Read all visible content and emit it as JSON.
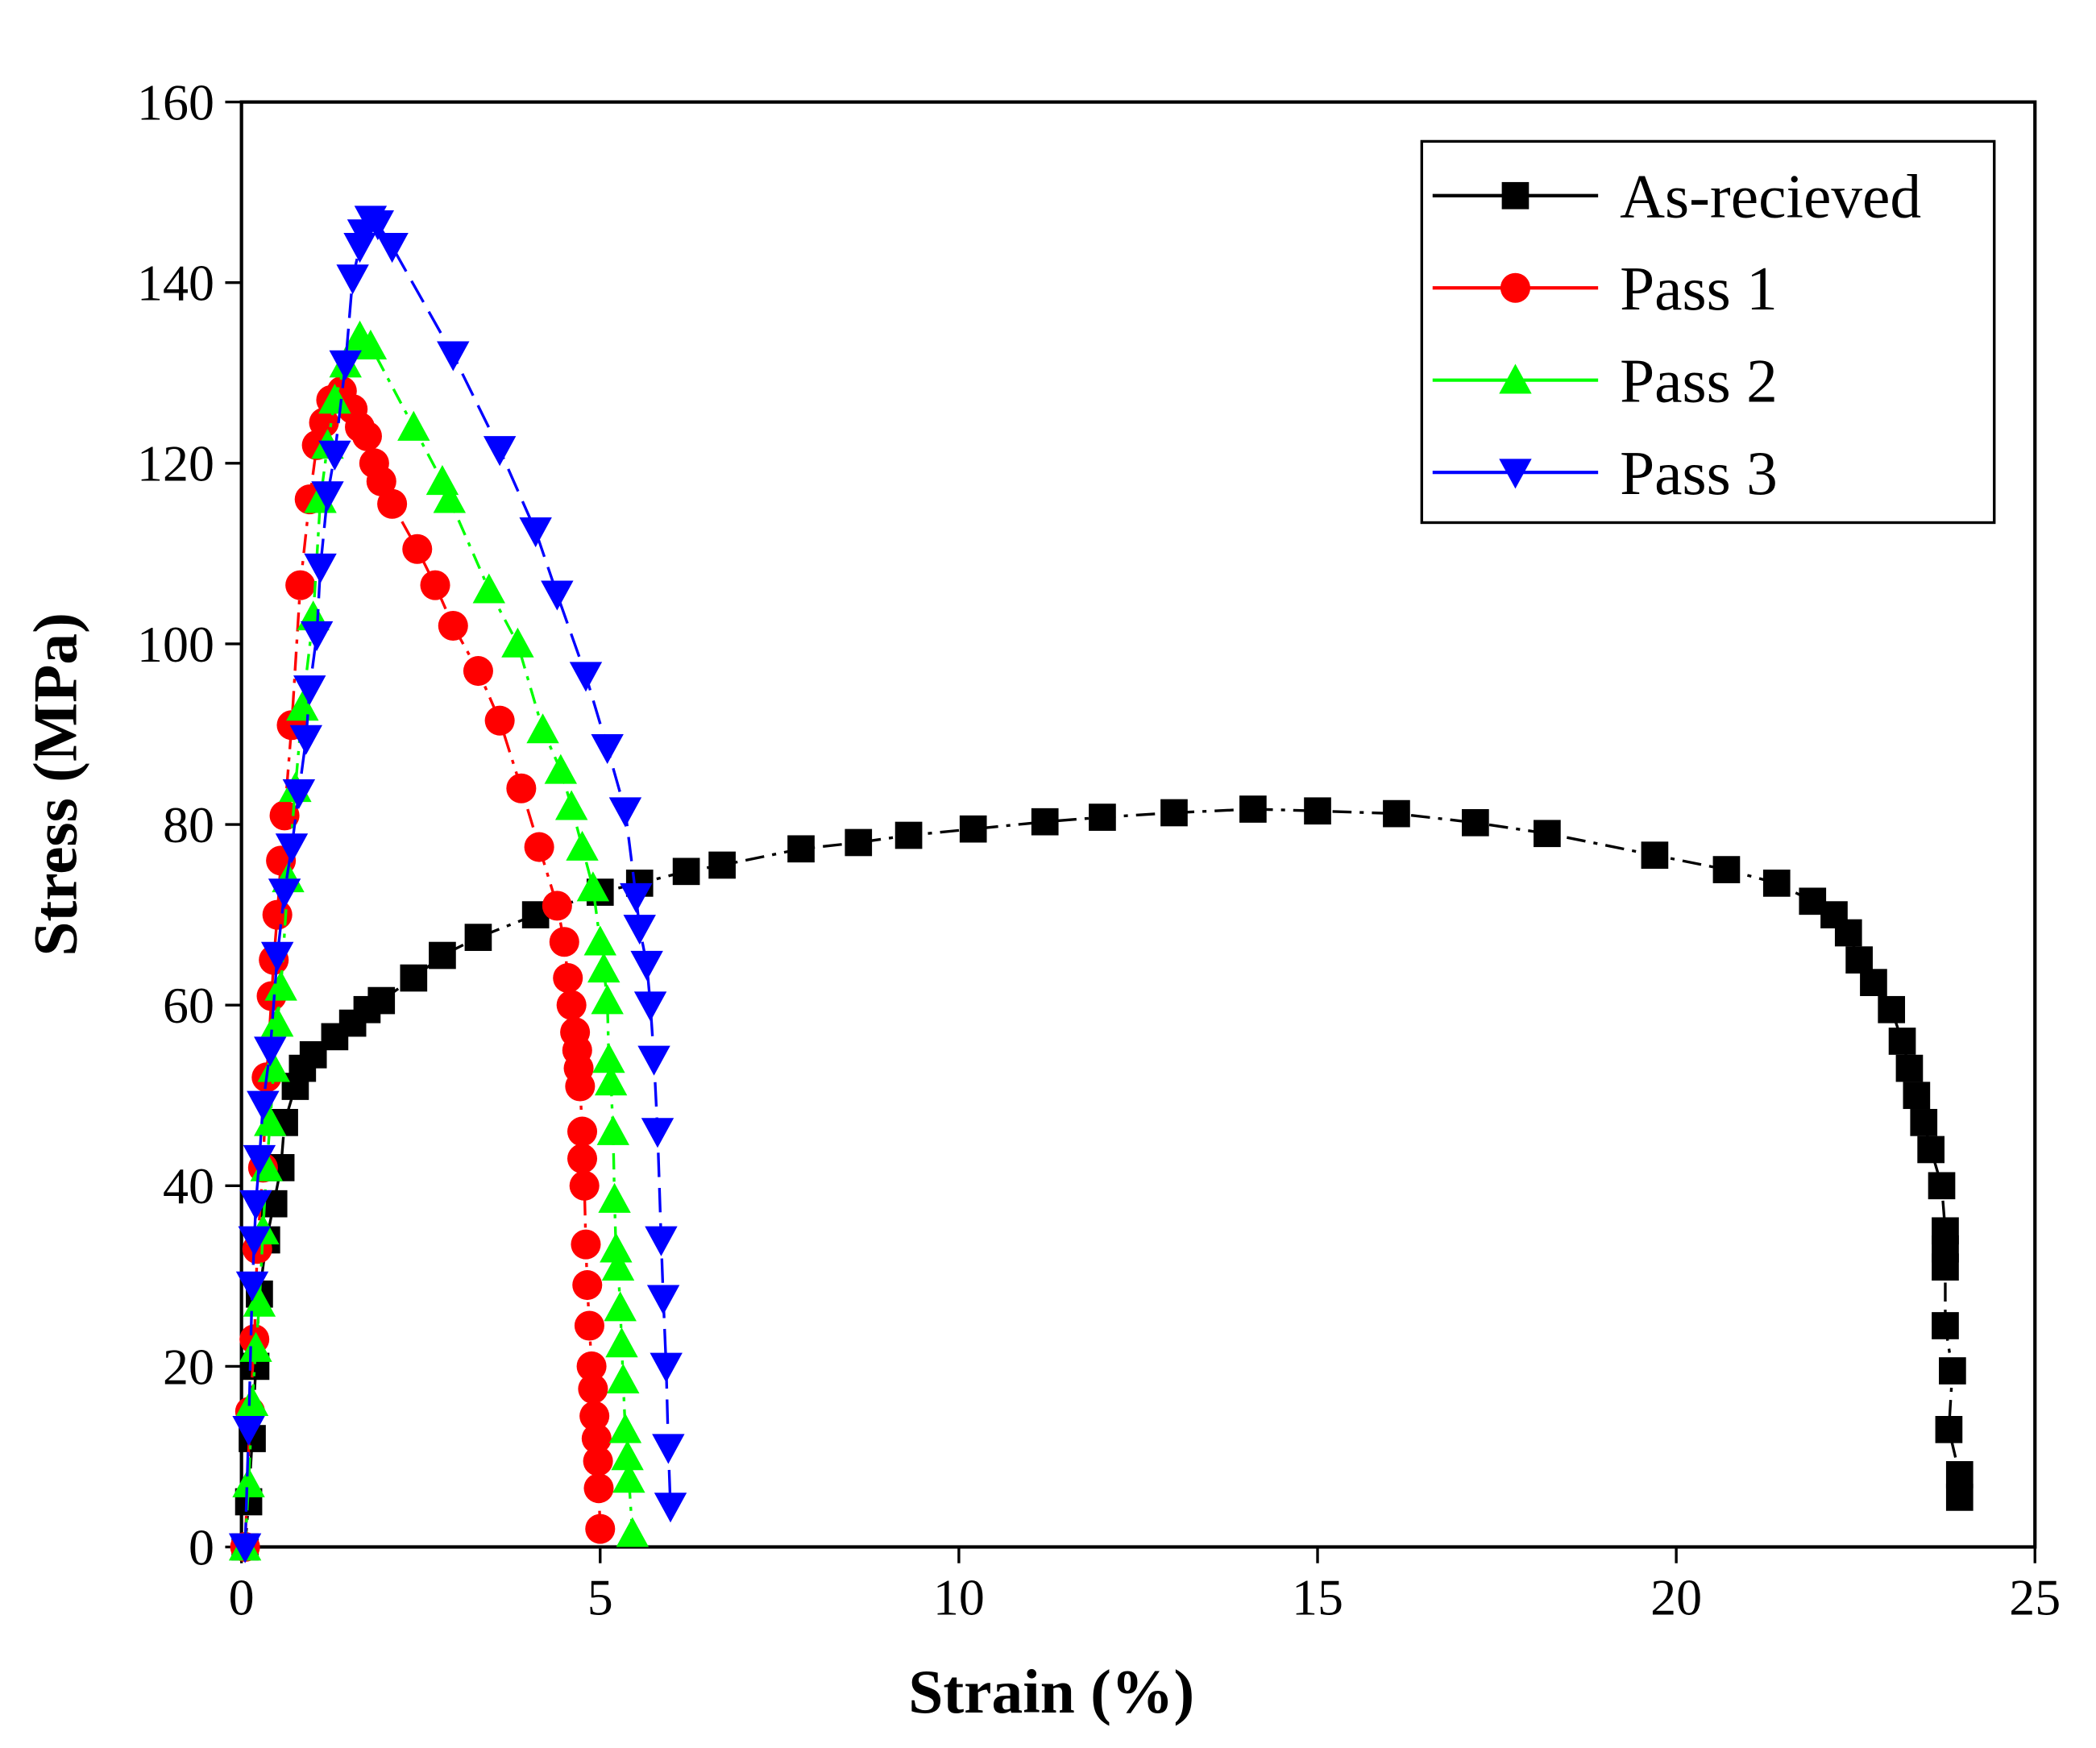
{
  "chart_data": {
    "type": "line",
    "xlabel": "Strain (%)",
    "ylabel": "Stress (MPa)",
    "xlim": [
      0,
      25
    ],
    "xticks": [
      0,
      5,
      10,
      15,
      20,
      25
    ],
    "ylim": [
      0,
      160
    ],
    "yticks": [
      0,
      20,
      40,
      60,
      80,
      100,
      120,
      140,
      160
    ],
    "legend": "upper right",
    "series": [
      {
        "name": "As-recieved",
        "color": "#000000",
        "marker": "square",
        "x": [
          0.05,
          0.1,
          0.15,
          0.2,
          0.25,
          0.35,
          0.45,
          0.55,
          0.6,
          0.75,
          0.85,
          1.0,
          1.3,
          1.55,
          1.75,
          1.95,
          2.4,
          2.8,
          3.3,
          4.1,
          5.0,
          5.55,
          6.2,
          6.7,
          7.8,
          8.6,
          9.3,
          10.2,
          11.2,
          12.0,
          13.0,
          14.1,
          15.0,
          16.1,
          17.2,
          18.2,
          19.7,
          20.7,
          21.4,
          21.9,
          22.2,
          22.4,
          22.55,
          22.75,
          23.0,
          23.15,
          23.25,
          23.35,
          23.45,
          23.55,
          23.7,
          23.75,
          23.75,
          23.75,
          23.75,
          23.85,
          23.8,
          23.95,
          23.95
        ],
        "values": [
          0,
          5,
          12,
          20,
          28,
          34,
          38,
          42,
          47,
          51,
          53,
          54.5,
          56.5,
          58,
          59.5,
          60.5,
          63,
          65.5,
          67.5,
          70,
          72.5,
          73.5,
          74.8,
          75.5,
          77.3,
          78,
          78.8,
          79.5,
          80.3,
          80.8,
          81.3,
          81.7,
          81.5,
          81.2,
          80.2,
          79,
          76.6,
          75,
          73.5,
          71.5,
          70,
          68,
          65,
          62.5,
          59.5,
          56,
          53,
          50,
          47,
          44,
          40,
          35,
          31,
          33,
          24.5,
          19.5,
          13,
          8,
          5.5
        ]
      },
      {
        "name": "Pass 1",
        "color": "#ff0000",
        "marker": "circle",
        "x": [
          0.05,
          0.12,
          0.18,
          0.22,
          0.3,
          0.35,
          0.42,
          0.45,
          0.5,
          0.55,
          0.6,
          0.7,
          0.82,
          0.95,
          1.05,
          1.15,
          1.25,
          1.4,
          1.55,
          1.65,
          1.75,
          1.85,
          1.95,
          2.1,
          2.45,
          2.7,
          2.95,
          3.3,
          3.6,
          3.9,
          4.15,
          4.4,
          4.5,
          4.55,
          4.6,
          4.65,
          4.68,
          4.7,
          4.72,
          4.75,
          4.75,
          4.78,
          4.8,
          4.82,
          4.85,
          4.88,
          4.9,
          4.92,
          4.95,
          4.97,
          4.98,
          5.0
        ],
        "values": [
          0,
          15,
          23,
          33,
          42,
          52,
          61,
          65,
          70,
          76,
          81,
          91,
          106.5,
          116,
          122,
          124.5,
          127,
          128,
          126,
          124,
          123,
          120,
          118,
          115.5,
          110.5,
          106.5,
          102,
          97,
          91.5,
          84,
          77.5,
          71,
          67,
          63,
          60,
          57,
          55,
          53,
          51,
          46,
          43,
          40,
          33.5,
          29,
          24.5,
          20,
          17.5,
          14.5,
          12,
          9.5,
          6.5,
          2
        ]
      },
      {
        "name": "Pass 2",
        "color": "#00ff00",
        "marker": "triangle-up",
        "x": [
          0.05,
          0.1,
          0.15,
          0.2,
          0.25,
          0.3,
          0.35,
          0.4,
          0.45,
          0.5,
          0.55,
          0.65,
          0.75,
          0.85,
          1.0,
          1.1,
          1.2,
          1.3,
          1.45,
          1.65,
          1.8,
          2.4,
          2.8,
          2.9,
          3.45,
          3.85,
          4.2,
          4.45,
          4.6,
          4.75,
          4.9,
          5.0,
          5.05,
          5.1,
          5.12,
          5.15,
          5.18,
          5.2,
          5.22,
          5.25,
          5.28,
          5.3,
          5.32,
          5.35,
          5.38,
          5.4,
          5.45
        ],
        "values": [
          0,
          7,
          16,
          22,
          27,
          35,
          42,
          47,
          53,
          58,
          62,
          74,
          84,
          93,
          103,
          116,
          122,
          127,
          131,
          134,
          133,
          124,
          118,
          116,
          106,
          100,
          90.5,
          86,
          82,
          77.5,
          73,
          67,
          64,
          60.5,
          54,
          51.5,
          46,
          38.5,
          33,
          31,
          26.5,
          22.5,
          18.5,
          13,
          10,
          7.5,
          1.5
        ]
      },
      {
        "name": "Pass 3",
        "color": "#0000ff",
        "marker": "triangle-down",
        "x": [
          0.05,
          0.1,
          0.15,
          0.18,
          0.2,
          0.25,
          0.3,
          0.4,
          0.5,
          0.6,
          0.7,
          0.8,
          0.9,
          0.95,
          1.05,
          1.1,
          1.2,
          1.3,
          1.45,
          1.55,
          1.65,
          1.7,
          1.8,
          1.9,
          2.1,
          2.95,
          3.6,
          4.1,
          4.4,
          4.8,
          5.1,
          5.35,
          5.5,
          5.55,
          5.65,
          5.7,
          5.75,
          5.8,
          5.85,
          5.88,
          5.92,
          5.95,
          5.98
        ],
        "values": [
          0,
          13,
          29,
          34,
          38,
          43,
          49,
          55,
          65.5,
          72.5,
          77.5,
          83.5,
          89.5,
          95,
          101,
          108.5,
          116.5,
          121,
          131,
          140.5,
          144,
          145.5,
          147,
          146.5,
          144,
          132,
          121.5,
          112.5,
          105.5,
          96.5,
          88.5,
          81.5,
          72,
          68.5,
          64.5,
          60,
          54,
          46,
          34,
          27.5,
          20,
          11,
          4.5
        ]
      }
    ]
  }
}
